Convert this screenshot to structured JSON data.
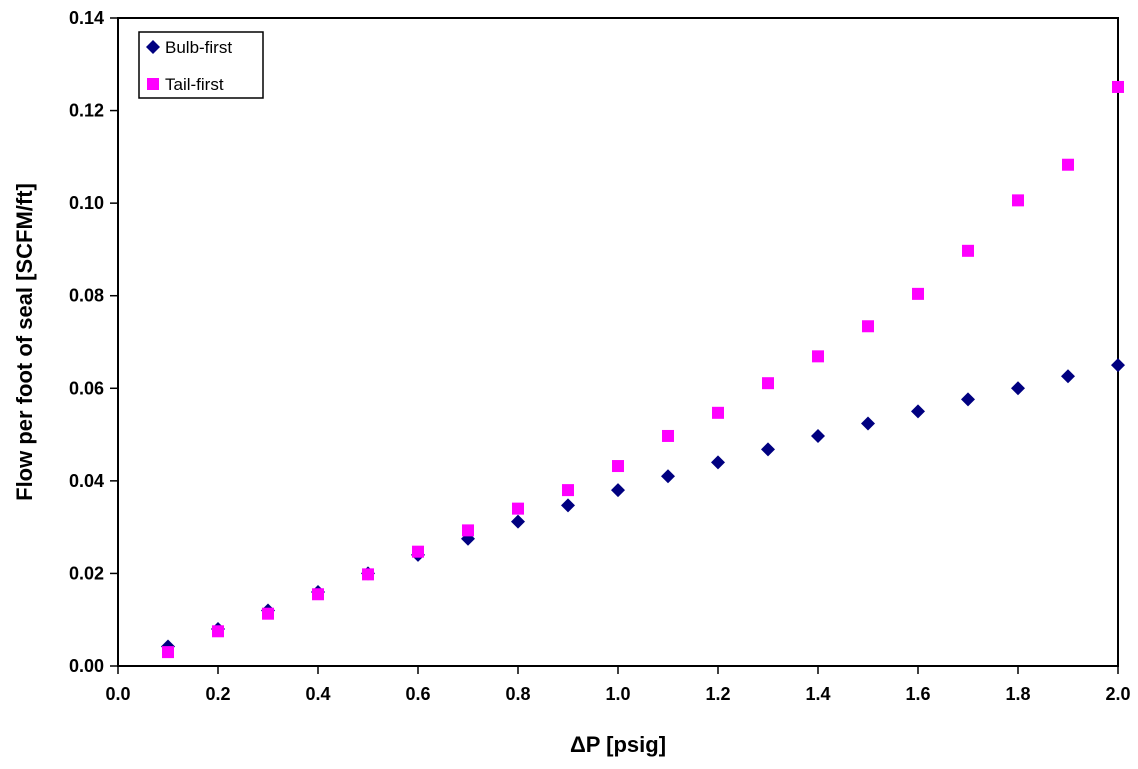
{
  "chart_data": {
    "type": "scatter",
    "title": "",
    "xlabel": "ΔP [psig]",
    "ylabel": "Flow per foot of seal [SCFM/ft]",
    "xlim": [
      0.0,
      2.0
    ],
    "ylim": [
      0.0,
      0.14
    ],
    "x_ticks": [
      "0.0",
      "0.2",
      "0.4",
      "0.6",
      "0.8",
      "1.0",
      "1.2",
      "1.4",
      "1.6",
      "1.8",
      "2.0"
    ],
    "y_ticks": [
      "0.00",
      "0.02",
      "0.04",
      "0.06",
      "0.08",
      "0.10",
      "0.12",
      "0.14"
    ],
    "grid": false,
    "legend_position": "top-left",
    "series": [
      {
        "name": "Bulb-first",
        "marker": "diamond",
        "color": "#000080",
        "points": [
          [
            0.1,
            0.0042
          ],
          [
            0.2,
            0.008
          ],
          [
            0.3,
            0.012
          ],
          [
            0.4,
            0.016
          ],
          [
            0.5,
            0.02
          ],
          [
            0.6,
            0.024
          ],
          [
            0.7,
            0.0275
          ],
          [
            0.8,
            0.0312
          ],
          [
            0.9,
            0.0347
          ],
          [
            1.0,
            0.038
          ],
          [
            1.1,
            0.041
          ],
          [
            1.2,
            0.044
          ],
          [
            1.3,
            0.0468
          ],
          [
            1.4,
            0.0497
          ],
          [
            1.5,
            0.0524
          ],
          [
            1.6,
            0.055
          ],
          [
            1.7,
            0.0576
          ],
          [
            1.8,
            0.06
          ],
          [
            1.9,
            0.0626
          ],
          [
            2.0,
            0.065
          ]
        ]
      },
      {
        "name": "Tail-first",
        "marker": "square",
        "color": "#ff00ff",
        "points": [
          [
            0.1,
            0.003
          ],
          [
            0.2,
            0.0075
          ],
          [
            0.3,
            0.0113
          ],
          [
            0.4,
            0.0155
          ],
          [
            0.5,
            0.0198
          ],
          [
            0.6,
            0.0247
          ],
          [
            0.7,
            0.0293
          ],
          [
            0.8,
            0.034
          ],
          [
            0.9,
            0.038
          ],
          [
            1.0,
            0.0432
          ],
          [
            1.1,
            0.0497
          ],
          [
            1.2,
            0.0547
          ],
          [
            1.3,
            0.0611
          ],
          [
            1.4,
            0.0669
          ],
          [
            1.5,
            0.0734
          ],
          [
            1.6,
            0.0804
          ],
          [
            1.7,
            0.0897
          ],
          [
            1.8,
            0.1006
          ],
          [
            1.9,
            0.1083
          ],
          [
            2.0,
            0.1251
          ]
        ]
      }
    ]
  }
}
